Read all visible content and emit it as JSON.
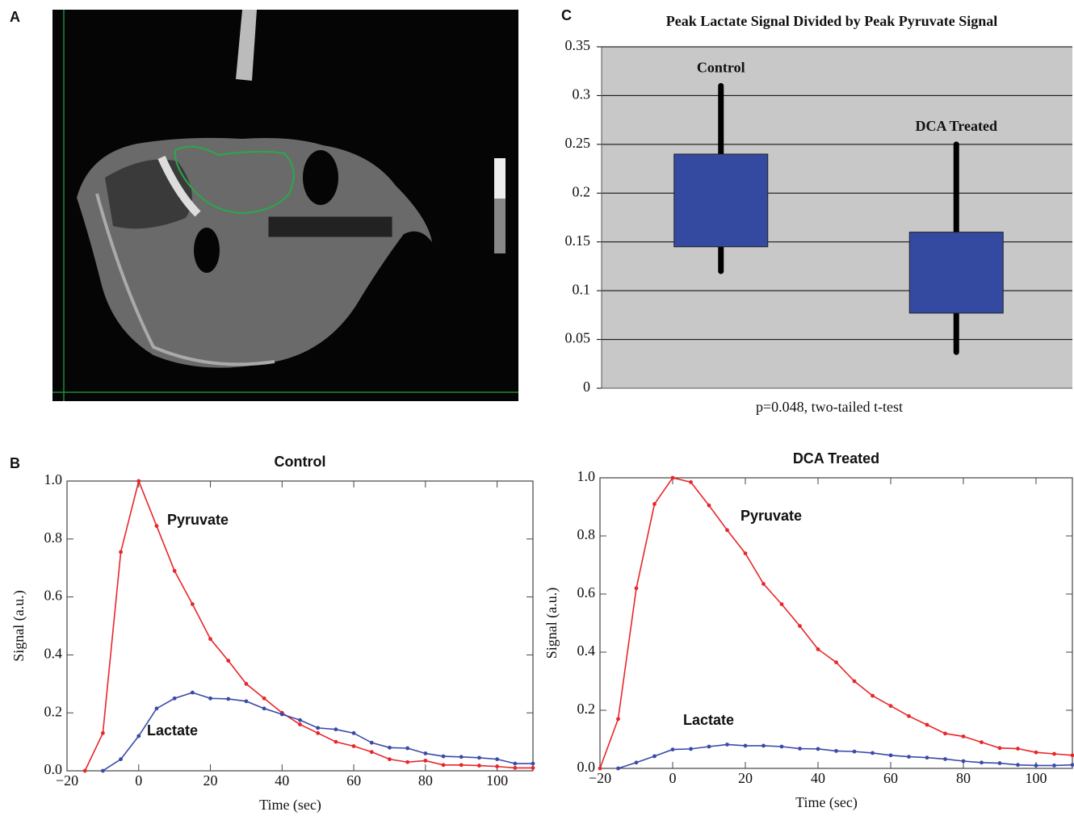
{
  "panel_labels": [
    "A",
    "B",
    "C"
  ],
  "chart_data": [
    {
      "type": "box",
      "title": "Peak Lactate Signal Divided by Peak Pyruvate Signal",
      "categories": [
        "Control",
        "DCA Treated"
      ],
      "whisker_low": [
        0.12,
        0.037
      ],
      "box_low": [
        0.145,
        0.077
      ],
      "box_high": [
        0.24,
        0.16
      ],
      "whisker_high": [
        0.31,
        0.25
      ],
      "color": "#3449a0",
      "whisker_color": "#000000",
      "plot_background": "#c8c8c8",
      "annotation": "p=0.048, two-tailed t-test",
      "ylim": [
        0,
        0.35
      ],
      "yticks": [
        0,
        0.05,
        0.1,
        0.15,
        0.2,
        0.25,
        0.3,
        0.35
      ],
      "grid": true
    },
    {
      "type": "line",
      "title": "Control",
      "xlabel": "Time (sec)",
      "ylabel": "Signal (a.u.)",
      "x": [
        -15,
        -10,
        -5,
        0,
        5,
        10,
        15,
        20,
        25,
        30,
        35,
        40,
        45,
        50,
        55,
        60,
        65,
        70,
        75,
        80,
        85,
        90,
        95,
        100,
        105,
        110
      ],
      "series": [
        {
          "name": "Pyruvate",
          "color": "#e8262a",
          "values": [
            0,
            0.13,
            0.755,
            1.0,
            0.845,
            0.69,
            0.575,
            0.455,
            0.38,
            0.3,
            0.25,
            0.2,
            0.16,
            0.13,
            0.1,
            0.085,
            0.065,
            0.04,
            0.03,
            0.035,
            0.02,
            0.02,
            0.018,
            0.015,
            0.01,
            0.01
          ]
        },
        {
          "name": "Lactate",
          "color": "#3b4aa8",
          "values": [
            null,
            0,
            0.04,
            0.12,
            0.215,
            0.25,
            0.27,
            0.25,
            0.248,
            0.24,
            0.215,
            0.195,
            0.175,
            0.148,
            0.143,
            0.13,
            0.097,
            0.08,
            0.078,
            0.06,
            0.05,
            0.048,
            0.045,
            0.04,
            0.025,
            0.025
          ]
        }
      ],
      "xlim": [
        -20,
        110
      ],
      "ylim": [
        0,
        1
      ],
      "xticks": [
        {
          "value": -20,
          "label": "−20"
        },
        0,
        20,
        40,
        60,
        80,
        100
      ],
      "yticks": [
        {
          "value": 0,
          "label": "0.0"
        },
        0.2,
        0.4,
        0.6,
        0.8,
        {
          "value": 1,
          "label": "1.0"
        }
      ]
    },
    {
      "type": "line",
      "title": "DCA Treated",
      "xlabel": "Time (sec)",
      "ylabel": "Signal (a.u.)",
      "x": [
        -20,
        -15,
        -10,
        -5,
        0,
        5,
        10,
        15,
        20,
        25,
        30,
        35,
        40,
        45,
        50,
        55,
        60,
        65,
        70,
        75,
        80,
        85,
        90,
        95,
        100,
        105,
        110
      ],
      "series": [
        {
          "name": "Pyruvate",
          "color": "#e8262a",
          "values": [
            0,
            0.17,
            0.62,
            0.91,
            1.0,
            0.985,
            0.905,
            0.82,
            0.74,
            0.635,
            0.565,
            0.49,
            0.41,
            0.365,
            0.3,
            0.25,
            0.215,
            0.18,
            0.15,
            0.12,
            0.11,
            0.09,
            0.07,
            0.068,
            0.055,
            0.05,
            0.045
          ]
        },
        {
          "name": "Lactate",
          "color": "#3b4aa8",
          "values": [
            null,
            0,
            0.02,
            0.042,
            0.065,
            0.067,
            0.075,
            0.082,
            0.078,
            0.078,
            0.075,
            0.068,
            0.067,
            0.06,
            0.058,
            0.053,
            0.045,
            0.04,
            0.037,
            0.032,
            0.025,
            0.02,
            0.018,
            0.012,
            0.01,
            0.01,
            0.012
          ]
        }
      ],
      "xlim": [
        -20,
        110
      ],
      "ylim": [
        0,
        1
      ],
      "xticks": [
        {
          "value": -20,
          "label": "−20"
        },
        0,
        20,
        40,
        60,
        80,
        100
      ],
      "yticks": [
        {
          "value": 0,
          "label": "0.0"
        },
        0.2,
        0.4,
        0.6,
        0.8,
        {
          "value": 1,
          "label": "1.0"
        }
      ]
    }
  ]
}
